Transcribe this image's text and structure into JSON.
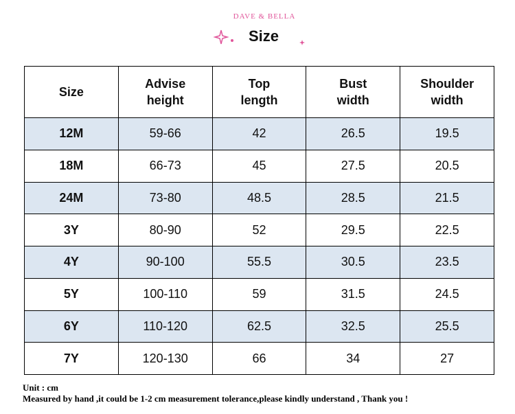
{
  "header": {
    "brand": "DAVE & BELLA",
    "title": "Size"
  },
  "table": {
    "header": [
      [
        "Size"
      ],
      [
        "Advise",
        "height"
      ],
      [
        "Top",
        "length"
      ],
      [
        "Bust",
        "width"
      ],
      [
        "Shoulder",
        "width"
      ]
    ],
    "rows": [
      [
        "12M",
        "59-66",
        "42",
        "26.5",
        "19.5"
      ],
      [
        "18M",
        "66-73",
        "45",
        "27.5",
        "20.5"
      ],
      [
        "24M",
        "73-80",
        "48.5",
        "28.5",
        "21.5"
      ],
      [
        "3Y",
        "80-90",
        "52",
        "29.5",
        "22.5"
      ],
      [
        "4Y",
        "90-100",
        "55.5",
        "30.5",
        "23.5"
      ],
      [
        "5Y",
        "100-110",
        "59",
        "31.5",
        "24.5"
      ],
      [
        "6Y",
        "110-120",
        "62.5",
        "32.5",
        "25.5"
      ],
      [
        "7Y",
        "120-130",
        "66",
        "34",
        "27"
      ]
    ]
  },
  "footer": {
    "unit": "Unit : cm",
    "note": "Measured by hand ,it could be 1-2 cm measurement tolerance,please kindly understand , Thank you !"
  }
}
